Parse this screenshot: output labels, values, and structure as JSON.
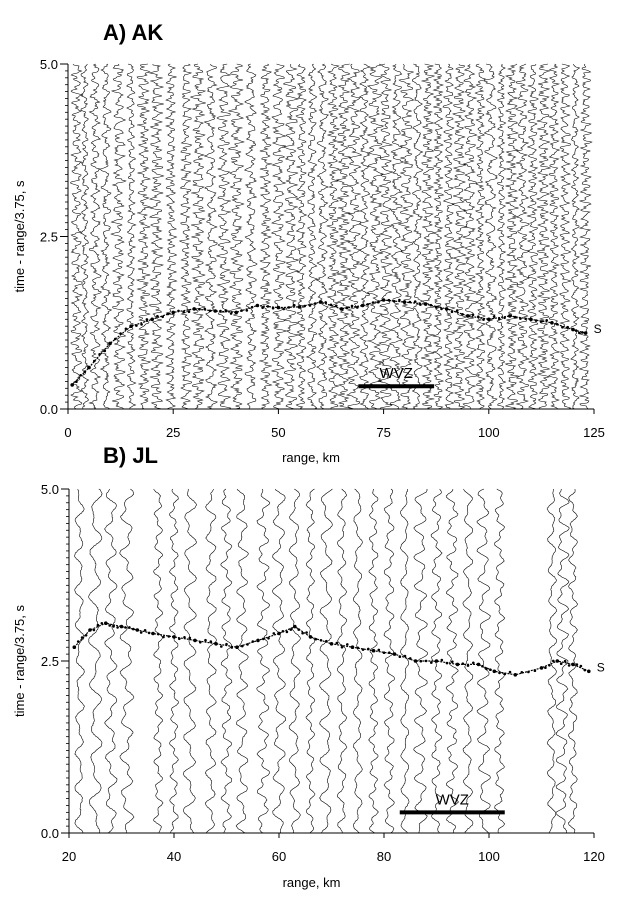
{
  "chart_data": [
    {
      "type": "scatter",
      "title": "A) AK",
      "xlabel": "range, km",
      "ylabel": "time - range/3.75, s",
      "xlim": [
        0,
        125
      ],
      "ylim": [
        0.0,
        5.0
      ],
      "x_ticks": [
        "0",
        "25",
        "50",
        "75",
        "100",
        "125"
      ],
      "y_ticks": [
        "0.0",
        "2.5",
        "5.0"
      ],
      "x_tick_values": [
        0,
        25,
        50,
        75,
        100,
        125
      ],
      "y_tick_values": [
        0.0,
        2.5,
        5.0
      ],
      "trace_offsets_km": [
        2,
        4,
        6.5,
        9,
        12,
        15,
        18,
        21,
        24.5,
        28,
        31,
        34,
        37,
        40,
        43.5,
        47,
        50,
        53,
        55.5,
        58,
        60.5,
        63,
        65.5,
        68,
        70.5,
        73,
        75.5,
        78,
        80.5,
        83,
        85.5,
        88,
        90.5,
        93,
        95.5,
        98,
        100.5,
        103,
        105.5,
        108,
        110.5,
        113,
        115.5,
        118,
        120.5,
        123
      ],
      "series": [
        {
          "name": "S",
          "x": [
            1,
            5,
            10,
            15,
            20,
            25,
            30,
            35,
            40,
            45,
            50,
            55,
            60,
            65,
            70,
            75,
            80,
            85,
            90,
            95,
            100,
            105,
            110,
            115,
            120,
            123
          ],
          "y": [
            0.35,
            0.6,
            0.95,
            1.2,
            1.3,
            1.4,
            1.45,
            1.42,
            1.4,
            1.5,
            1.47,
            1.48,
            1.55,
            1.45,
            1.5,
            1.58,
            1.55,
            1.52,
            1.45,
            1.35,
            1.3,
            1.35,
            1.3,
            1.25,
            1.15,
            1.1
          ]
        }
      ],
      "annotations": [
        {
          "text": "WVZ",
          "x_start": 69,
          "x_end": 87,
          "y": 0.33
        }
      ]
    },
    {
      "type": "scatter",
      "title": "B) JL",
      "xlabel": "range, km",
      "ylabel": "time - range/3.75, s",
      "xlim": [
        20,
        120
      ],
      "ylim": [
        0.0,
        5.0
      ],
      "x_ticks": [
        "20",
        "40",
        "60",
        "80",
        "100",
        "120"
      ],
      "y_ticks": [
        "0.0",
        "2.5",
        "5.0"
      ],
      "x_tick_values": [
        20,
        40,
        60,
        80,
        100,
        120
      ],
      "y_tick_values": [
        0.0,
        2.5,
        5.0
      ],
      "trace_offsets_km": [
        22,
        25,
        28,
        31,
        37,
        40,
        43,
        47,
        50,
        53,
        57,
        60,
        63,
        66,
        69,
        72,
        75,
        78,
        81,
        84,
        87,
        90,
        93,
        96,
        99,
        102,
        112,
        114,
        116
      ],
      "series": [
        {
          "name": "S",
          "x": [
            21,
            24,
            27,
            30,
            33,
            36,
            40,
            44,
            48,
            52,
            56,
            60,
            63,
            66,
            70,
            74,
            78,
            82,
            86,
            90,
            94,
            98,
            101,
            105,
            110,
            113,
            116,
            119
          ],
          "y": [
            2.7,
            2.95,
            3.05,
            3.0,
            2.95,
            2.9,
            2.85,
            2.8,
            2.75,
            2.7,
            2.8,
            2.9,
            3.0,
            2.85,
            2.75,
            2.7,
            2.65,
            2.6,
            2.5,
            2.5,
            2.45,
            2.45,
            2.35,
            2.3,
            2.4,
            2.5,
            2.45,
            2.35
          ]
        }
      ],
      "annotations": [
        {
          "text": "WVZ",
          "x_start": 83,
          "x_end": 103,
          "y": 0.3
        }
      ]
    }
  ]
}
